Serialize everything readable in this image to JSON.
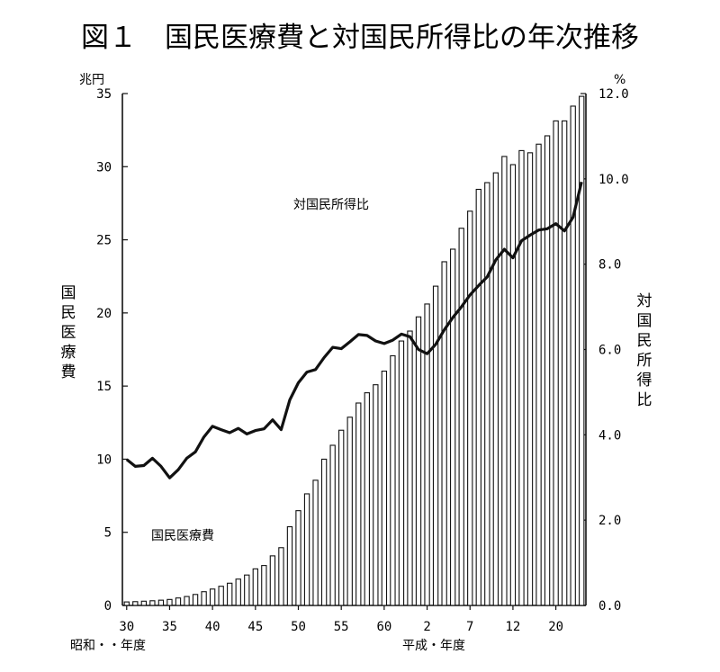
{
  "chart_data": {
    "type": "bar",
    "title": "図１　国民医療費と対国民所得比の年次推移",
    "left_axis": {
      "unit": "兆円",
      "label": "国民医療費",
      "ylim": [
        0,
        35
      ],
      "ticks": [
        "35",
        "30",
        "25",
        "20",
        "15",
        "10",
        "5",
        "0"
      ]
    },
    "right_axis": {
      "unit": "%",
      "label": "対国民所得比",
      "ylim": [
        0,
        12
      ],
      "ticks": [
        "12.0",
        "10.0",
        "8.0",
        "6.0",
        "4.0",
        "2.0",
        "0.0"
      ]
    },
    "x_tick_labels": [
      "30",
      "35",
      "40",
      "45",
      "50",
      "55",
      "60",
      "2",
      "7",
      "12",
      "20"
    ],
    "x_era_labels": [
      "昭和・・年度",
      "平成・年度"
    ],
    "categories": [
      "S30",
      "S31",
      "S32",
      "S33",
      "S34",
      "S35",
      "S36",
      "S37",
      "S38",
      "S39",
      "S40",
      "S41",
      "S42",
      "S43",
      "S44",
      "S45",
      "S46",
      "S47",
      "S48",
      "S49",
      "S50",
      "S51",
      "S52",
      "S53",
      "S54",
      "S55",
      "S56",
      "S57",
      "S58",
      "S59",
      "S60",
      "S61",
      "S62",
      "S63",
      "H1",
      "H2",
      "H3",
      "H4",
      "H5",
      "H6",
      "H7",
      "H8",
      "H9",
      "H10",
      "H11",
      "H12",
      "H13",
      "H14",
      "H15",
      "H16",
      "H17",
      "H18",
      "H19",
      "H20"
    ],
    "series": [
      {
        "name": "国民医療費",
        "type": "bar",
        "axis": "left",
        "values": [
          0.24,
          0.26,
          0.29,
          0.32,
          0.36,
          0.41,
          0.51,
          0.61,
          0.75,
          0.94,
          1.12,
          1.31,
          1.52,
          1.8,
          2.08,
          2.5,
          2.73,
          3.39,
          3.95,
          5.38,
          6.48,
          7.63,
          8.56,
          10.0,
          10.95,
          11.98,
          12.87,
          13.84,
          14.54,
          15.09,
          16.02,
          17.07,
          18.08,
          18.76,
          19.73,
          20.61,
          21.83,
          23.5,
          24.36,
          25.79,
          26.96,
          28.45,
          28.91,
          29.58,
          30.7,
          30.14,
          31.1,
          30.95,
          31.54,
          32.11,
          33.13,
          33.13,
          34.14,
          34.81
        ]
      },
      {
        "name": "対国民所得比",
        "type": "line",
        "axis": "right",
        "values": [
          3.42,
          3.26,
          3.28,
          3.45,
          3.26,
          2.99,
          3.18,
          3.45,
          3.6,
          3.95,
          4.2,
          4.12,
          4.05,
          4.15,
          4.02,
          4.1,
          4.14,
          4.35,
          4.12,
          4.82,
          5.22,
          5.47,
          5.53,
          5.81,
          6.05,
          6.02,
          6.18,
          6.35,
          6.33,
          6.2,
          6.14,
          6.22,
          6.36,
          6.3,
          6.0,
          5.9,
          6.12,
          6.46,
          6.75,
          7.0,
          7.28,
          7.5,
          7.7,
          8.1,
          8.35,
          8.15,
          8.55,
          8.68,
          8.8,
          8.83,
          8.95,
          8.78,
          9.1,
          9.93
        ]
      }
    ],
    "annotations": [
      "対国民所得比",
      "国民医療費"
    ],
    "grid": false
  }
}
